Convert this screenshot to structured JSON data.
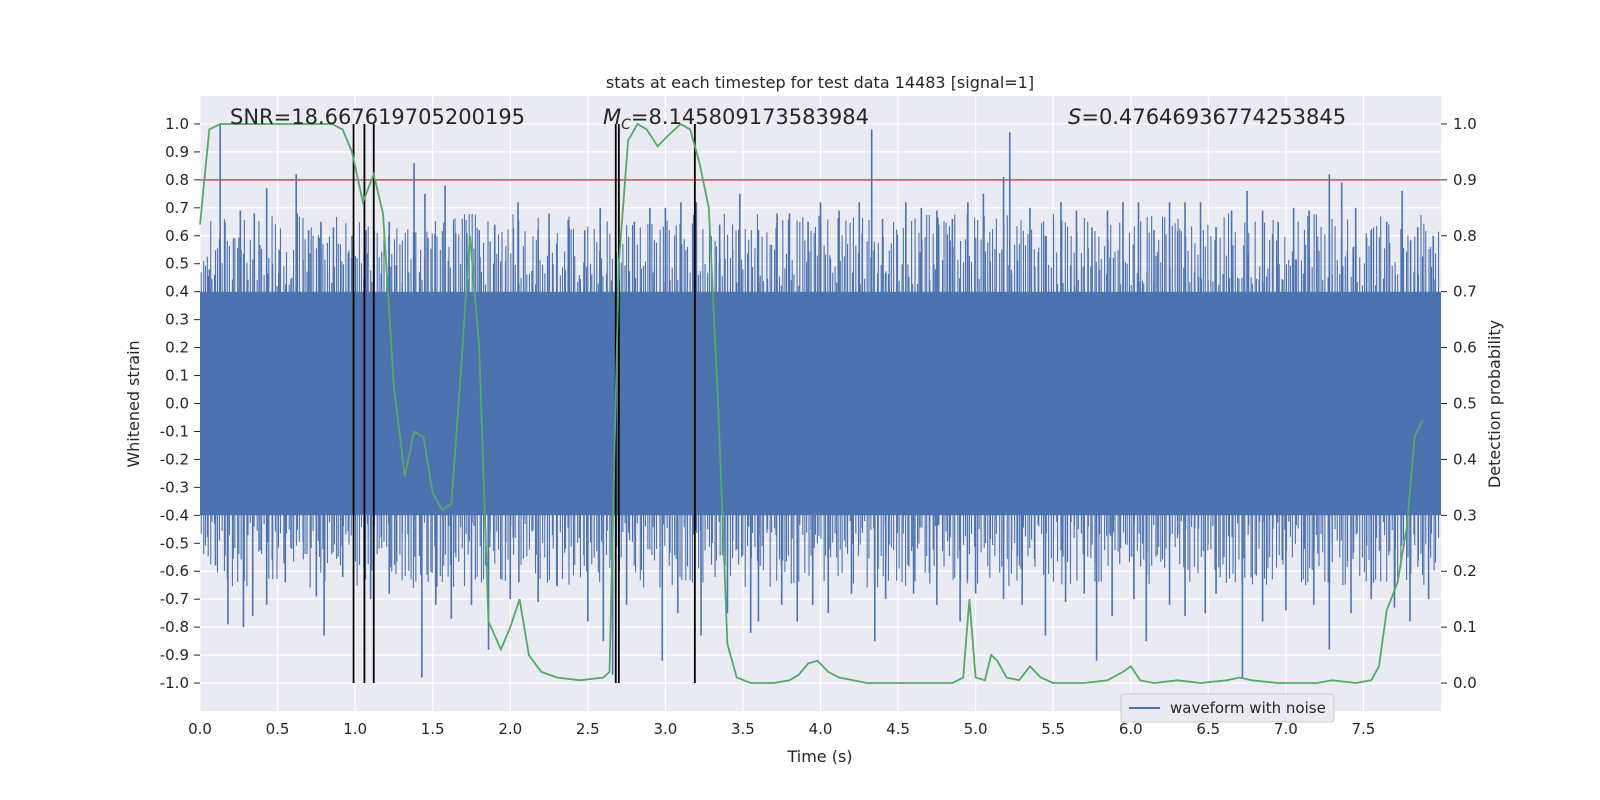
{
  "chart_data": {
    "type": "line",
    "title": "stats at each timestep for test data 14483 [signal=1]",
    "xlabel": "Time (s)",
    "ylabel": "Whitened strain",
    "y2label": "Detection probability",
    "xlim": [
      0.0,
      8.0
    ],
    "ylim": [
      -1.1,
      1.1
    ],
    "y2lim": [
      -0.05,
      1.05
    ],
    "x_ticks": [
      "0.0",
      "0.5",
      "1.0",
      "1.5",
      "2.0",
      "2.5",
      "3.0",
      "3.5",
      "4.0",
      "4.5",
      "5.0",
      "5.5",
      "6.0",
      "6.5",
      "7.0",
      "7.5"
    ],
    "y_ticks": [
      "1.0",
      "0.9",
      "0.8",
      "0.7",
      "0.6",
      "0.5",
      "0.4",
      "0.3",
      "0.2",
      "0.1",
      "0.0",
      "-0.1",
      "-0.2",
      "-0.3",
      "-0.4",
      "-0.5",
      "-0.6",
      "-0.7",
      "-0.8",
      "-0.9",
      "-1.0"
    ],
    "y2_ticks": [
      "1.0",
      "0.9",
      "0.8",
      "0.7",
      "0.6",
      "0.5",
      "0.4",
      "0.3",
      "0.2",
      "0.1",
      "0.0"
    ],
    "annotations": {
      "snr": "SNR=18.667619705200195",
      "mc_symbol": "M",
      "mc_sub": "C",
      "mc_value": "=8.145809173583984",
      "s_symbol": "S",
      "s_value": "=0.47646936774253845"
    },
    "legend": {
      "label": "waveform with noise",
      "location": "lower-right"
    },
    "threshold": {
      "value": 0.9,
      "axis": "right",
      "color": "#c44e52"
    },
    "vertical_lines": [
      0.99,
      1.06,
      1.12,
      2.68,
      2.7,
      3.19
    ],
    "vline_range": [
      -1.0,
      1.0
    ],
    "waveform_series": {
      "name": "waveform with noise",
      "color": "#4c72b0",
      "band": 0.4,
      "spikes_up": [
        [
          0.06,
          0.48
        ],
        [
          0.13,
          1.0
        ],
        [
          0.26,
          0.69
        ],
        [
          0.35,
          0.68
        ],
        [
          0.43,
          0.77
        ],
        [
          0.51,
          0.55
        ],
        [
          0.62,
          0.82
        ],
        [
          0.7,
          0.62
        ],
        [
          0.78,
          0.65
        ],
        [
          0.86,
          0.63
        ],
        [
          0.98,
          0.6
        ],
        [
          1.07,
          0.62
        ],
        [
          1.22,
          0.65
        ],
        [
          1.38,
          0.86
        ],
        [
          1.45,
          0.75
        ],
        [
          1.58,
          0.78
        ],
        [
          1.72,
          0.61
        ],
        [
          1.8,
          0.62
        ],
        [
          1.9,
          0.64
        ],
        [
          2.05,
          0.72
        ],
        [
          2.18,
          0.62
        ],
        [
          2.25,
          0.68
        ],
        [
          2.38,
          0.63
        ],
        [
          2.48,
          0.62
        ],
        [
          2.58,
          0.7
        ],
        [
          2.7,
          0.72
        ],
        [
          2.8,
          0.65
        ],
        [
          2.9,
          0.7
        ],
        [
          3.0,
          0.7
        ],
        [
          3.1,
          0.72
        ],
        [
          3.2,
          0.72
        ],
        [
          3.35,
          0.64
        ],
        [
          3.48,
          0.75
        ],
        [
          3.6,
          0.62
        ],
        [
          3.72,
          0.68
        ],
        [
          3.8,
          0.68
        ],
        [
          3.92,
          0.65
        ],
        [
          4.0,
          0.72
        ],
        [
          4.12,
          0.69
        ],
        [
          4.25,
          0.72
        ],
        [
          4.33,
          0.98
        ],
        [
          4.4,
          0.66
        ],
        [
          4.55,
          0.72
        ],
        [
          4.65,
          0.7
        ],
        [
          4.75,
          0.69
        ],
        [
          4.85,
          0.66
        ],
        [
          4.95,
          0.72
        ],
        [
          5.05,
          0.75
        ],
        [
          5.18,
          0.81
        ],
        [
          5.22,
          0.97
        ],
        [
          5.35,
          0.7
        ],
        [
          5.45,
          0.6
        ],
        [
          5.55,
          0.72
        ],
        [
          5.65,
          0.69
        ],
        [
          5.75,
          0.63
        ],
        [
          5.85,
          0.69
        ],
        [
          5.95,
          0.72
        ],
        [
          6.05,
          0.72
        ],
        [
          6.15,
          0.62
        ],
        [
          6.25,
          0.72
        ],
        [
          6.35,
          0.72
        ],
        [
          6.45,
          0.72
        ],
        [
          6.55,
          0.63
        ],
        [
          6.65,
          0.69
        ],
        [
          6.75,
          0.76
        ],
        [
          6.85,
          0.69
        ],
        [
          6.95,
          0.65
        ],
        [
          7.05,
          0.7
        ],
        [
          7.15,
          0.69
        ],
        [
          7.28,
          0.82
        ],
        [
          7.36,
          0.79
        ],
        [
          7.45,
          0.7
        ],
        [
          7.55,
          0.62
        ],
        [
          7.65,
          0.65
        ],
        [
          7.75,
          0.76
        ],
        [
          7.85,
          0.63
        ],
        [
          7.95,
          0.6
        ]
      ],
      "spikes_down": [
        [
          0.1,
          -0.58
        ],
        [
          0.18,
          -0.79
        ],
        [
          0.28,
          -0.8
        ],
        [
          0.34,
          -0.76
        ],
        [
          0.43,
          -0.72
        ],
        [
          0.55,
          -0.64
        ],
        [
          0.75,
          -0.69
        ],
        [
          0.8,
          -0.83
        ],
        [
          0.92,
          -0.62
        ],
        [
          1.1,
          -0.7
        ],
        [
          1.22,
          -0.68
        ],
        [
          1.43,
          -0.98
        ],
        [
          1.52,
          -0.72
        ],
        [
          1.62,
          -0.77
        ],
        [
          1.75,
          -0.72
        ],
        [
          1.86,
          -0.88
        ],
        [
          2.0,
          -0.7
        ],
        [
          2.18,
          -0.71
        ],
        [
          2.3,
          -0.65
        ],
        [
          2.5,
          -0.78
        ],
        [
          2.6,
          -0.85
        ],
        [
          2.66,
          -0.97
        ],
        [
          2.75,
          -0.72
        ],
        [
          2.98,
          -0.92
        ],
        [
          3.08,
          -0.75
        ],
        [
          3.23,
          -0.83
        ],
        [
          3.4,
          -0.75
        ],
        [
          3.55,
          -0.82
        ],
        [
          3.6,
          -0.78
        ],
        [
          3.75,
          -0.72
        ],
        [
          3.85,
          -0.78
        ],
        [
          3.95,
          -0.72
        ],
        [
          4.05,
          -0.75
        ],
        [
          4.2,
          -0.68
        ],
        [
          4.35,
          -0.85
        ],
        [
          4.42,
          -0.7
        ],
        [
          4.6,
          -0.68
        ],
        [
          4.75,
          -0.72
        ],
        [
          4.9,
          -0.78
        ],
        [
          5.0,
          -0.68
        ],
        [
          5.18,
          -0.7
        ],
        [
          5.3,
          -0.72
        ],
        [
          5.45,
          -0.83
        ],
        [
          5.58,
          -0.71
        ],
        [
          5.7,
          -0.68
        ],
        [
          5.78,
          -0.92
        ],
        [
          5.88,
          -0.76
        ],
        [
          6.02,
          -0.7
        ],
        [
          6.1,
          -0.85
        ],
        [
          6.25,
          -0.72
        ],
        [
          6.35,
          -0.76
        ],
        [
          6.48,
          -0.75
        ],
        [
          6.55,
          -0.68
        ],
        [
          6.72,
          -0.98
        ],
        [
          6.85,
          -0.78
        ],
        [
          7.0,
          -0.74
        ],
        [
          7.18,
          -0.72
        ],
        [
          7.28,
          -0.88
        ],
        [
          7.42,
          -0.75
        ],
        [
          7.55,
          -0.7
        ],
        [
          7.7,
          -0.73
        ],
        [
          7.8,
          -0.78
        ],
        [
          7.92,
          -0.7
        ]
      ]
    },
    "probability_series": {
      "name": "detection probability",
      "color": "#55a868",
      "points": [
        [
          0.0,
          0.82
        ],
        [
          0.06,
          0.99
        ],
        [
          0.13,
          1.0
        ],
        [
          0.3,
          1.0
        ],
        [
          0.5,
          1.0
        ],
        [
          0.7,
          1.0
        ],
        [
          0.85,
          1.0
        ],
        [
          0.92,
          0.99
        ],
        [
          0.98,
          0.95
        ],
        [
          1.05,
          0.86
        ],
        [
          1.12,
          0.91
        ],
        [
          1.18,
          0.84
        ],
        [
          1.25,
          0.53
        ],
        [
          1.32,
          0.37
        ],
        [
          1.38,
          0.45
        ],
        [
          1.44,
          0.44
        ],
        [
          1.5,
          0.34
        ],
        [
          1.56,
          0.31
        ],
        [
          1.62,
          0.32
        ],
        [
          1.68,
          0.55
        ],
        [
          1.74,
          0.8
        ],
        [
          1.8,
          0.6
        ],
        [
          1.86,
          0.11
        ],
        [
          1.94,
          0.06
        ],
        [
          2.0,
          0.1
        ],
        [
          2.06,
          0.15
        ],
        [
          2.12,
          0.05
        ],
        [
          2.2,
          0.02
        ],
        [
          2.3,
          0.01
        ],
        [
          2.45,
          0.005
        ],
        [
          2.6,
          0.01
        ],
        [
          2.64,
          0.02
        ],
        [
          2.7,
          0.75
        ],
        [
          2.76,
          0.97
        ],
        [
          2.82,
          1.0
        ],
        [
          2.88,
          0.99
        ],
        [
          2.95,
          0.96
        ],
        [
          3.02,
          0.98
        ],
        [
          3.1,
          1.0
        ],
        [
          3.16,
          0.99
        ],
        [
          3.22,
          0.93
        ],
        [
          3.28,
          0.85
        ],
        [
          3.34,
          0.5
        ],
        [
          3.4,
          0.07
        ],
        [
          3.46,
          0.01
        ],
        [
          3.55,
          0.0
        ],
        [
          3.7,
          0.0
        ],
        [
          3.8,
          0.005
        ],
        [
          3.86,
          0.015
        ],
        [
          3.92,
          0.035
        ],
        [
          3.98,
          0.04
        ],
        [
          4.05,
          0.02
        ],
        [
          4.12,
          0.01
        ],
        [
          4.3,
          0.0
        ],
        [
          4.5,
          0.0
        ],
        [
          4.7,
          0.0
        ],
        [
          4.85,
          0.0
        ],
        [
          4.92,
          0.01
        ],
        [
          4.96,
          0.15
        ],
        [
          5.0,
          0.01
        ],
        [
          5.06,
          0.005
        ],
        [
          5.1,
          0.05
        ],
        [
          5.14,
          0.04
        ],
        [
          5.2,
          0.01
        ],
        [
          5.28,
          0.005
        ],
        [
          5.35,
          0.03
        ],
        [
          5.42,
          0.01
        ],
        [
          5.5,
          0.0
        ],
        [
          5.7,
          0.0
        ],
        [
          5.85,
          0.005
        ],
        [
          5.95,
          0.02
        ],
        [
          6.0,
          0.03
        ],
        [
          6.06,
          0.005
        ],
        [
          6.15,
          0.0
        ],
        [
          6.3,
          0.005
        ],
        [
          6.45,
          0.0
        ],
        [
          6.62,
          0.005
        ],
        [
          6.7,
          0.01
        ],
        [
          6.78,
          0.005
        ],
        [
          6.95,
          0.0
        ],
        [
          7.2,
          0.0
        ],
        [
          7.3,
          0.005
        ],
        [
          7.45,
          0.0
        ],
        [
          7.55,
          0.005
        ],
        [
          7.6,
          0.03
        ],
        [
          7.65,
          0.13
        ],
        [
          7.72,
          0.18
        ],
        [
          7.78,
          0.28
        ],
        [
          7.83,
          0.44
        ],
        [
          7.88,
          0.47
        ]
      ]
    }
  }
}
